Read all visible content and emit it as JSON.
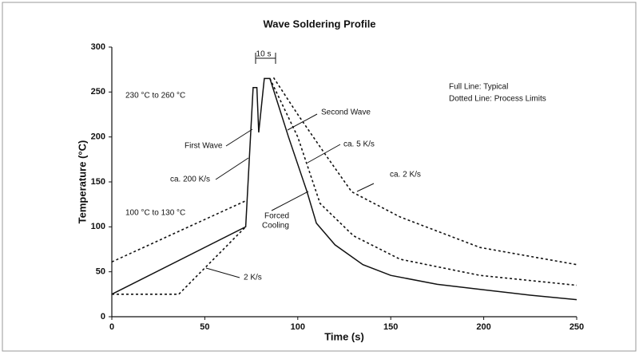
{
  "chart_data": {
    "type": "line",
    "title": "Wave Soldering Profile",
    "x_label": "Time (s)",
    "y_label": "Temperature (°C)",
    "xlim": [
      0,
      250
    ],
    "ylim": [
      0,
      300
    ],
    "xticks": [
      0,
      50,
      100,
      150,
      200,
      250
    ],
    "yticks": [
      0,
      50,
      100,
      150,
      200,
      250,
      300
    ],
    "series": [
      {
        "color": "#111111",
        "style": "solid",
        "x": [
          0,
          72,
          76,
          78,
          79,
          82,
          85,
          95,
          105,
          110,
          120,
          135,
          150,
          175,
          200,
          225,
          250
        ],
        "values": [
          25,
          100,
          255,
          255,
          205,
          265,
          265,
          200,
          139,
          104,
          80,
          58,
          46,
          36,
          30,
          24,
          19
        ]
      },
      {
        "color": "#111111",
        "style": "dotted",
        "x": [
          0,
          72,
          80,
          87,
          100,
          115,
          129,
          155,
          198,
          250
        ],
        "values": [
          61,
          129,
          null,
          266,
          225,
          180,
          139,
          111,
          77,
          58
        ]
      },
      {
        "color": "#111111",
        "style": "dotted",
        "x": [
          0,
          36,
          72,
          80,
          85,
          100,
          112,
          130,
          155,
          198,
          250
        ],
        "values": [
          25,
          25,
          100,
          null,
          265,
          200,
          126,
          90,
          64,
          46,
          35
        ]
      }
    ],
    "annotations": [
      "10 s",
      "230 °C to 260 °C",
      "First Wave",
      "ca. 200 K/s",
      "100 °C to 130 °C",
      "2 K/s",
      "Forced",
      "Cooling",
      "Second Wave",
      "ca. 5 K/s",
      "ca. 2 K/s",
      "Full Line: Typical",
      "Dotted Line: Process Limits"
    ]
  }
}
